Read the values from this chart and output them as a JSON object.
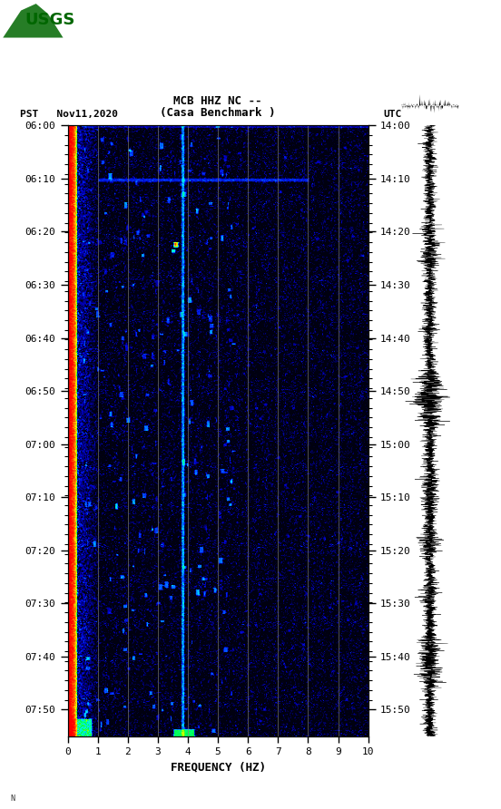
{
  "title_line1": "MCB HHZ NC --",
  "title_line2": "(Casa Benchmark )",
  "left_label": "PST   Nov11,2020",
  "right_label": "UTC",
  "xlabel": "FREQUENCY (HZ)",
  "freq_min": 0,
  "freq_max": 10,
  "pst_ticks": [
    "06:00",
    "06:10",
    "06:20",
    "06:30",
    "06:40",
    "06:50",
    "07:00",
    "07:10",
    "07:20",
    "07:30",
    "07:40",
    "07:50"
  ],
  "utc_ticks": [
    "14:00",
    "14:10",
    "14:20",
    "14:30",
    "14:40",
    "14:50",
    "15:00",
    "15:10",
    "15:20",
    "15:30",
    "15:40",
    "15:50"
  ],
  "background_color": "#ffffff",
  "vline_color": "#888877",
  "vline_freqs": [
    1.0,
    2.0,
    3.0,
    4.0,
    5.0,
    6.0,
    7.0,
    8.0,
    9.0
  ],
  "bright_vline_freq": 3.8,
  "colormap_nodes": [
    [
      0.0,
      "#000010"
    ],
    [
      0.15,
      "#000060"
    ],
    [
      0.3,
      "#0000cc"
    ],
    [
      0.45,
      "#0055ff"
    ],
    [
      0.55,
      "#00ccff"
    ],
    [
      0.62,
      "#00ffcc"
    ],
    [
      0.68,
      "#00ff44"
    ],
    [
      0.74,
      "#aaff00"
    ],
    [
      0.8,
      "#ffff00"
    ],
    [
      0.87,
      "#ffaa00"
    ],
    [
      0.93,
      "#ff4400"
    ],
    [
      1.0,
      "#ff0000"
    ]
  ]
}
